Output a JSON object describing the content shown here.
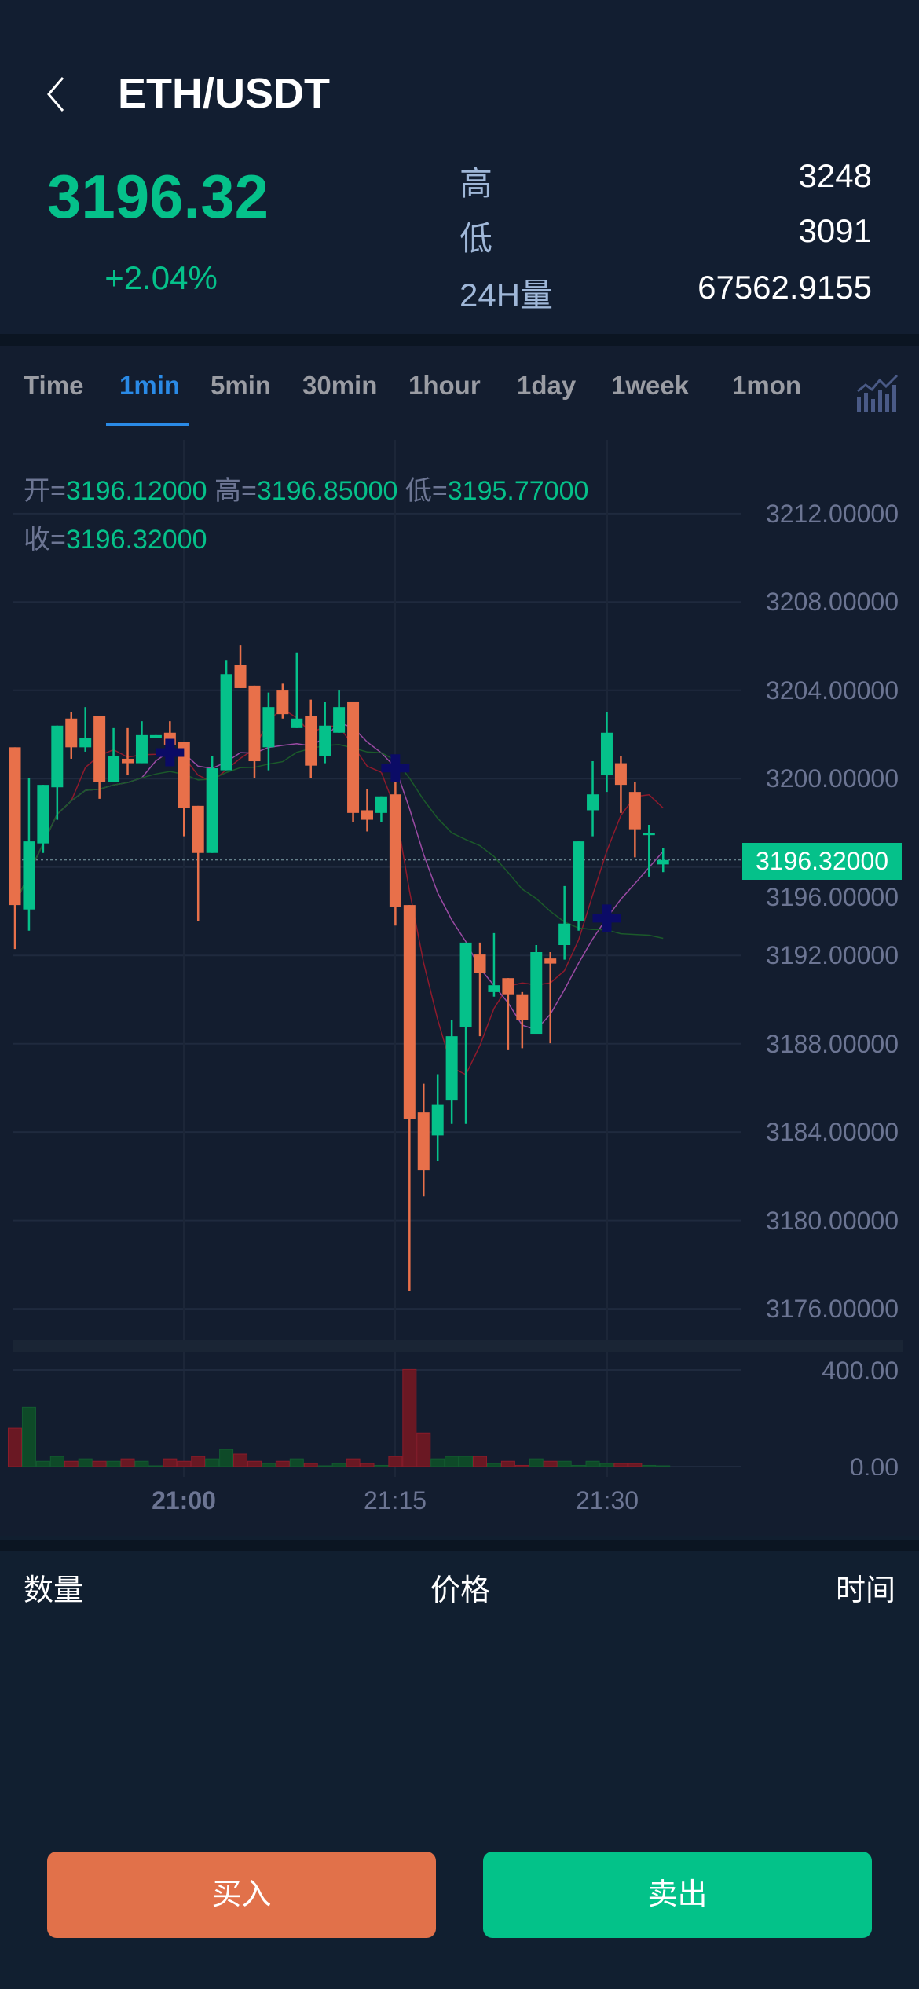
{
  "header": {
    "title": "ETH/USDT",
    "price": "3196.32",
    "change": "+2.04%",
    "stats": [
      {
        "label": "高",
        "value": "3248"
      },
      {
        "label": "低",
        "value": "3091"
      },
      {
        "label": "24H量",
        "value": "67562.9155"
      }
    ]
  },
  "tabs": [
    {
      "label": "Time"
    },
    {
      "label": "1min",
      "active": true
    },
    {
      "label": "5min"
    },
    {
      "label": "30min"
    },
    {
      "label": "1hour"
    },
    {
      "label": "1day"
    },
    {
      "label": "1week"
    },
    {
      "label": "1mon"
    }
  ],
  "legend": {
    "open_label": "开=",
    "open": "3196.12000",
    "high_label": "高=",
    "high": "3196.85000",
    "low_label": "低=",
    "low": "3195.77000",
    "close_label": "收=",
    "close": "3196.32000"
  },
  "colors": {
    "up": "#05c18a",
    "down": "#e8704a",
    "accent": "#2a8ae6",
    "ma5": "#8e1a2c",
    "ma10": "#9a4aa3",
    "ma20": "#1b5a2a",
    "marker": "#0b0b66"
  },
  "chart_data": {
    "type": "candlestick",
    "interval": "1min",
    "ylim": [
      3174,
      3214
    ],
    "y_ticks": [
      "3212.00000",
      "3208.00000",
      "3204.00000",
      "3200.00000",
      "3196.00000",
      "3192.00000",
      "3188.00000",
      "3184.00000",
      "3180.00000",
      "3176.00000"
    ],
    "last_price": "3196.32000",
    "x_ticks": [
      "21:00",
      "21:15",
      "21:30"
    ],
    "volume_ticks": [
      "400.00",
      "0.00"
    ],
    "volume_max": 400,
    "grid": true,
    "candles": [
      {
        "t": "20:48",
        "o": 3201.42,
        "h": 3201.42,
        "l": 3192.29,
        "c": 3194.28,
        "v": 159
      },
      {
        "t": "20:49",
        "o": 3194.08,
        "h": 3200.04,
        "l": 3193.12,
        "c": 3197.16,
        "v": 246
      },
      {
        "t": "20:50",
        "o": 3197.07,
        "h": 3199.72,
        "l": 3196.64,
        "c": 3199.72,
        "v": 22
      },
      {
        "t": "20:51",
        "o": 3199.61,
        "h": 3202.4,
        "l": 3198.14,
        "c": 3202.4,
        "v": 42
      },
      {
        "t": "20:52",
        "o": 3202.72,
        "h": 3203.03,
        "l": 3200.9,
        "c": 3201.42,
        "v": 22
      },
      {
        "t": "20:53",
        "o": 3201.42,
        "h": 3203.24,
        "l": 3201.22,
        "c": 3201.85,
        "v": 32
      },
      {
        "t": "20:54",
        "o": 3202.83,
        "h": 3202.83,
        "l": 3199.09,
        "c": 3199.86,
        "v": 22
      },
      {
        "t": "20:55",
        "o": 3199.86,
        "h": 3202.29,
        "l": 3199.86,
        "c": 3201.02,
        "v": 22
      },
      {
        "t": "20:56",
        "o": 3200.9,
        "h": 3202.29,
        "l": 3200.15,
        "c": 3200.7,
        "v": 32
      },
      {
        "t": "20:57",
        "o": 3200.7,
        "h": 3202.6,
        "l": 3200.7,
        "c": 3201.97,
        "v": 22
      },
      {
        "t": "20:58",
        "o": 3201.85,
        "h": 3201.97,
        "l": 3201.85,
        "c": 3201.97,
        "v": 2
      },
      {
        "t": "20:59",
        "o": 3202.08,
        "h": 3202.6,
        "l": 3201.22,
        "c": 3201.54,
        "v": 32
      },
      {
        "t": "21:00",
        "o": 3201.65,
        "h": 3201.65,
        "l": 3197.39,
        "c": 3198.66,
        "v": 22
      },
      {
        "t": "21:01",
        "o": 3198.77,
        "h": 3198.77,
        "l": 3193.56,
        "c": 3196.64,
        "v": 42
      },
      {
        "t": "21:02",
        "o": 3196.64,
        "h": 3201.02,
        "l": 3196.64,
        "c": 3200.47,
        "v": 32
      },
      {
        "t": "21:03",
        "o": 3200.38,
        "h": 3205.37,
        "l": 3200.38,
        "c": 3204.73,
        "v": 71
      },
      {
        "t": "21:04",
        "o": 3205.14,
        "h": 3206.05,
        "l": 3204.1,
        "c": 3204.1,
        "v": 52
      },
      {
        "t": "21:05",
        "o": 3204.21,
        "h": 3204.21,
        "l": 3200.04,
        "c": 3200.79,
        "v": 22
      },
      {
        "t": "21:06",
        "o": 3201.42,
        "h": 3203.9,
        "l": 3200.38,
        "c": 3203.24,
        "v": 13
      },
      {
        "t": "21:07",
        "o": 3203.99,
        "h": 3204.3,
        "l": 3202.72,
        "c": 3202.92,
        "v": 22
      },
      {
        "t": "21:08",
        "o": 3202.29,
        "h": 3205.71,
        "l": 3202.29,
        "c": 3202.72,
        "v": 32
      },
      {
        "t": "21:09",
        "o": 3202.83,
        "h": 3203.58,
        "l": 3200.04,
        "c": 3200.59,
        "v": 13
      },
      {
        "t": "21:10",
        "o": 3201.02,
        "h": 3203.46,
        "l": 3200.7,
        "c": 3202.4,
        "v": 3
      },
      {
        "t": "21:11",
        "o": 3202.08,
        "h": 3203.99,
        "l": 3202.08,
        "c": 3203.24,
        "v": 13
      },
      {
        "t": "21:12",
        "o": 3203.46,
        "h": 3203.46,
        "l": 3198.02,
        "c": 3198.45,
        "v": 32
      },
      {
        "t": "21:13",
        "o": 3198.57,
        "h": 3199.52,
        "l": 3197.61,
        "c": 3198.14,
        "v": 13
      },
      {
        "t": "21:14",
        "o": 3198.45,
        "h": 3199.2,
        "l": 3198.02,
        "c": 3199.2,
        "v": 5
      },
      {
        "t": "21:15",
        "o": 3199.29,
        "h": 3199.86,
        "l": 3193.35,
        "c": 3194.19,
        "v": 42
      },
      {
        "t": "21:16",
        "o": 3194.28,
        "h": 3194.28,
        "l": 3176.82,
        "c": 3184.6,
        "v": 402
      },
      {
        "t": "21:17",
        "o": 3184.89,
        "h": 3186.19,
        "l": 3181.08,
        "c": 3182.26,
        "v": 139
      },
      {
        "t": "21:18",
        "o": 3183.85,
        "h": 3186.62,
        "l": 3182.69,
        "c": 3185.23,
        "v": 32
      },
      {
        "t": "21:19",
        "o": 3185.46,
        "h": 3189.09,
        "l": 3184.37,
        "c": 3188.34,
        "v": 42
      },
      {
        "t": "21:20",
        "o": 3188.75,
        "h": 3192.58,
        "l": 3184.37,
        "c": 3192.58,
        "v": 42
      },
      {
        "t": "21:21",
        "o": 3192.04,
        "h": 3192.58,
        "l": 3188.34,
        "c": 3191.2,
        "v": 42
      },
      {
        "t": "21:22",
        "o": 3190.34,
        "h": 3193.01,
        "l": 3190.13,
        "c": 3190.65,
        "v": 13
      },
      {
        "t": "21:23",
        "o": 3190.97,
        "h": 3190.97,
        "l": 3187.71,
        "c": 3190.24,
        "v": 22
      },
      {
        "t": "21:24",
        "o": 3190.24,
        "h": 3190.34,
        "l": 3187.8,
        "c": 3189.09,
        "v": 5
      },
      {
        "t": "21:25",
        "o": 3188.45,
        "h": 3192.47,
        "l": 3188.45,
        "c": 3192.15,
        "v": 32
      },
      {
        "t": "21:26",
        "o": 3191.86,
        "h": 3192.15,
        "l": 3188.02,
        "c": 3191.63,
        "v": 22
      },
      {
        "t": "21:27",
        "o": 3192.47,
        "h": 3195.14,
        "l": 3191.81,
        "c": 3193.44,
        "v": 22
      },
      {
        "t": "21:28",
        "o": 3193.56,
        "h": 3197.16,
        "l": 3193.12,
        "c": 3197.16,
        "v": 5
      },
      {
        "t": "21:29",
        "o": 3198.57,
        "h": 3200.79,
        "l": 3197.39,
        "c": 3199.29,
        "v": 22
      },
      {
        "t": "21:30",
        "o": 3200.15,
        "h": 3203.03,
        "l": 3199.4,
        "c": 3202.08,
        "v": 13
      },
      {
        "t": "21:31",
        "o": 3200.7,
        "h": 3201.02,
        "l": 3198.45,
        "c": 3199.72,
        "v": 13
      },
      {
        "t": "21:32",
        "o": 3199.4,
        "h": 3199.86,
        "l": 3196.44,
        "c": 3197.71,
        "v": 13
      },
      {
        "t": "21:33",
        "o": 3197.55,
        "h": 3197.91,
        "l": 3195.57,
        "c": 3197.55,
        "v": 5
      },
      {
        "t": "21:34",
        "o": 3196.12,
        "h": 3196.85,
        "l": 3195.77,
        "c": 3196.32,
        "v": 1
      }
    ],
    "markers": [
      {
        "t": "20:59",
        "price": 3201.2
      },
      {
        "t": "21:15",
        "price": 3200.5
      },
      {
        "t": "21:30",
        "price": 3193.7
      }
    ],
    "moving_averages": [
      5,
      10,
      20
    ]
  },
  "trades": {
    "columns": [
      "数量",
      "价格",
      "时间"
    ]
  },
  "actions": {
    "buy": "买入",
    "sell": "卖出"
  }
}
